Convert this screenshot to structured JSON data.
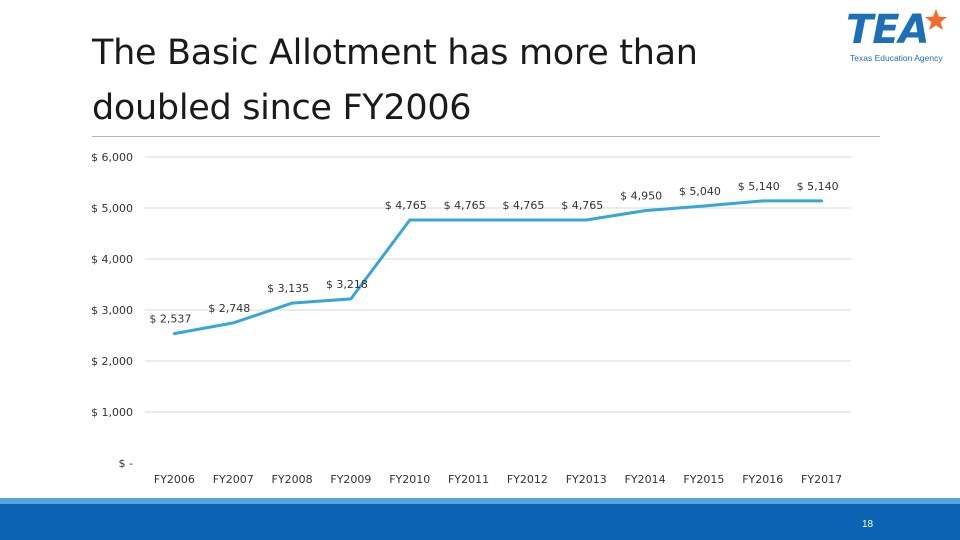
{
  "slide": {
    "title": "The Basic Allotment has more than doubled since FY2006",
    "page_number": "18"
  },
  "logo": {
    "word": "TEA",
    "subtitle": "Texas Education Agency",
    "icon": "star-icon",
    "color": "#1d6fb8"
  },
  "colors": {
    "line": "#39a6d8",
    "gridline": "#d9d9d9",
    "footer": "#0b63b3",
    "footer_band": "#5aa2dc"
  },
  "chart_data": {
    "type": "line",
    "title": "",
    "xlabel": "",
    "ylabel": "",
    "ylim": [
      0,
      6000
    ],
    "yticks": [
      0,
      1000,
      2000,
      3000,
      4000,
      5000,
      6000
    ],
    "ytick_labels": [
      "$ -",
      "$ 1,000",
      "$ 2,000",
      "$ 3,000",
      "$ 4,000",
      "$ 5,000",
      "$ 6,000"
    ],
    "grid": true,
    "legend": "none",
    "categories": [
      "FY2006",
      "FY2007",
      "FY2008",
      "FY2009",
      "FY2010",
      "FY2011",
      "FY2012",
      "FY2013",
      "FY2014",
      "FY2015",
      "FY2016",
      "FY2017"
    ],
    "series": [
      {
        "values": [
          2537,
          2748,
          3135,
          3218,
          4765,
          4765,
          4765,
          4765,
          4950,
          5040,
          5140,
          5140
        ],
        "data_labels": [
          "$ 2,537",
          "$ 2,748",
          "$ 3,135",
          "$ 3,218",
          "$ 4,765",
          "$ 4,765",
          "$ 4,765",
          "$ 4,765",
          "$ 4,950",
          "$ 5,040",
          "$ 5,140",
          "$ 5,140"
        ]
      }
    ]
  }
}
